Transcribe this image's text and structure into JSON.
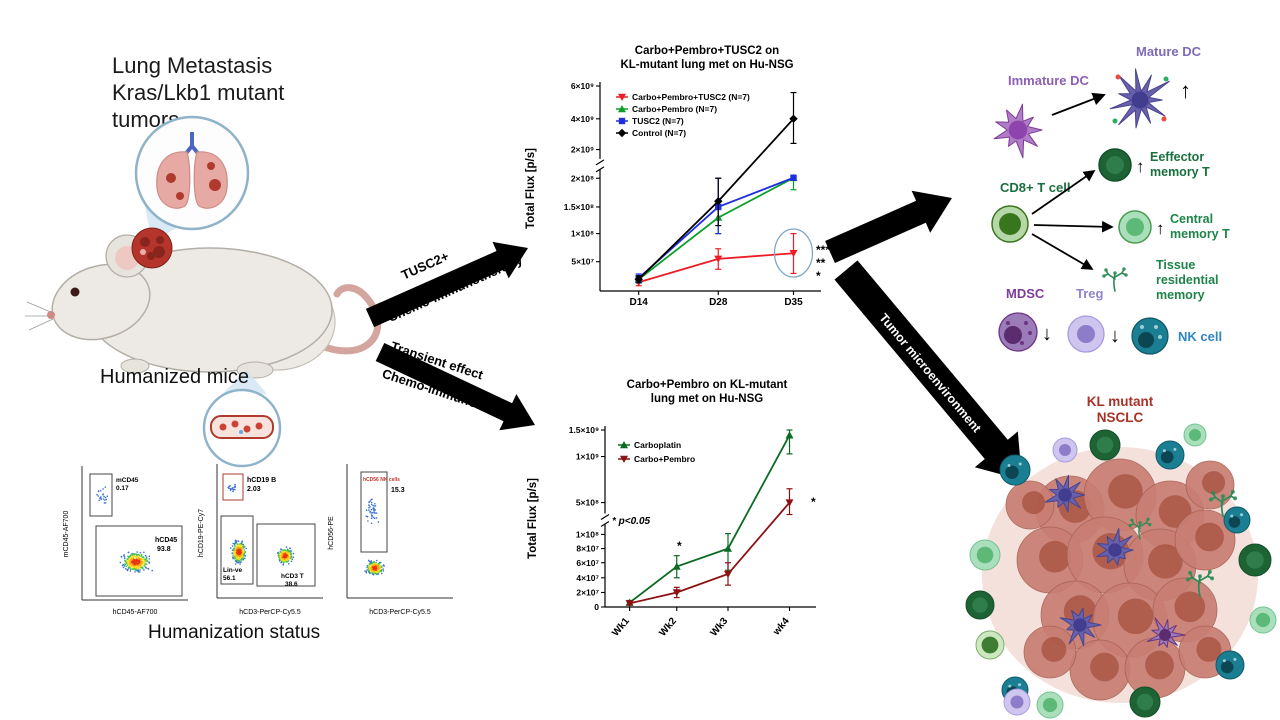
{
  "figure": {
    "background": "#ffffff"
  },
  "left_panel": {
    "title_lines": [
      "Lung Metastasis",
      "Kras/Lkb1 mutant",
      "tumors"
    ],
    "humanized_mice_label": "Humanized mice",
    "humanization_status_label": "Humanization status",
    "flow_plots": [
      {
        "ylabel": "mCD45-AF700",
        "xlabel": "hCD45-AF700",
        "gate1_label": "mCD45",
        "gate1_value": "0.17",
        "gate2_label": "hCD45",
        "gate2_value": "93.8"
      },
      {
        "ylabel": "hCD19-PE-Cy7",
        "xlabel": "hCD3-PerCP-Cy5.5",
        "gate1_label": "hCD19 B",
        "gate1_value": "2.03",
        "gate2_label": "Lin-ve",
        "gate2_value": "56.1",
        "gate3_label": "hCD3 T",
        "gate3_value": "38.6"
      },
      {
        "ylabel": "hCD56-PE",
        "xlabel": "hCD3-PerCP-Cy5.5",
        "gate1_label": "hCD56 NK cells",
        "gate1_value": "15.3"
      }
    ]
  },
  "arrows": {
    "tusc2_line1": "TUSC2+",
    "tusc2_line2": "Chemo-immunotherapy",
    "transient_line1": "Transient effect",
    "transient_line2": "Chemo-immunotherapy",
    "tumor_microenvironment": "Tumor microenvironment"
  },
  "chart_data": [
    {
      "type": "line",
      "title_lines": [
        "Carbo+Pembro+TUSC2 on",
        "KL-mutant lung met on Hu-NSG"
      ],
      "ylabel": "Total Flux [p/s]",
      "categories": [
        "D14",
        "D28",
        "D35"
      ],
      "ylim": [
        0,
        6000000000.0
      ],
      "grid": false,
      "legend_position": "top-left",
      "y_scale": "broken",
      "y_break_f": 0.62,
      "yticks": [
        {
          "label": "",
          "value": 0,
          "f": 0.0
        },
        {
          "label": "5×10⁷",
          "value": 50000000.0,
          "f": 0.143
        },
        {
          "label": "1×10⁸",
          "value": 100000000.0,
          "f": 0.28
        },
        {
          "label": "1.5×10⁸",
          "value": 150000000.0,
          "f": 0.41
        },
        {
          "label": "2×10⁸",
          "value": 200000000.0,
          "f": 0.55
        },
        {
          "label": "2×10⁹",
          "value": 2000000000.0,
          "f": 0.69
        },
        {
          "label": "4×10⁹",
          "value": 4000000000.0,
          "f": 0.84
        },
        {
          "label": "6×10⁹",
          "value": 6000000000.0,
          "f": 1.0
        }
      ],
      "series": [
        {
          "name": "Carbo+Pembro+TUSC2 (N=7)",
          "color": "#ed1c24",
          "marker": "triangle-down",
          "values": [
            15000000.0,
            55000000.0,
            65000000.0
          ],
          "err": [
            6000000.0,
            18000000.0,
            35000000.0
          ]
        },
        {
          "name": "Carbo+Pembro (N=7)",
          "color": "#0aa02a",
          "marker": "triangle-up",
          "values": [
            20000000.0,
            130000000.0,
            220000000.0
          ],
          "err": [
            6000000.0,
            30000000.0,
            40000000.0
          ]
        },
        {
          "name": "TUSC2 (N=7)",
          "color": "#1f2fe0",
          "marker": "square",
          "values": [
            22000000.0,
            150000000.0,
            230000000.0
          ],
          "err": [
            7000000.0,
            50000000.0,
            30000000.0
          ]
        },
        {
          "name": "Control (N=7)",
          "color": "#000000",
          "marker": "diamond",
          "values": [
            20000000.0,
            160000000.0,
            4000000000.0
          ],
          "err": [
            6000000.0,
            45000000.0,
            1600000000.0
          ]
        }
      ],
      "significance_stars": [
        "***",
        "**",
        "*"
      ]
    },
    {
      "type": "line",
      "title_lines": [
        "Carbo+Pembro on KL-mutant",
        "lung met on Hu-NSG"
      ],
      "ylabel": "Total Flux [p/s]",
      "categories": [
        "Wk1",
        "Wk2",
        "Wk3",
        "wk4"
      ],
      "ylim": [
        0,
        1500000000.0
      ],
      "grid": false,
      "legend_position": "top-left",
      "y_scale": "broken",
      "y_break_f": 0.5,
      "yticks": [
        {
          "label": "0",
          "value": 0,
          "f": 0.0
        },
        {
          "label": "2×10⁷",
          "value": 20000000.0,
          "f": 0.082
        },
        {
          "label": "4×10⁷",
          "value": 40000000.0,
          "f": 0.165
        },
        {
          "label": "6×10⁷",
          "value": 60000000.0,
          "f": 0.25
        },
        {
          "label": "8×10⁷",
          "value": 80000000.0,
          "f": 0.33
        },
        {
          "label": "1×10⁸",
          "value": 100000000.0,
          "f": 0.41
        },
        {
          "label": "5×10⁸",
          "value": 500000000.0,
          "f": 0.59
        },
        {
          "label": "1×10⁹",
          "value": 1000000000.0,
          "f": 0.85
        },
        {
          "label": "1.5×10⁹",
          "value": 1500000000.0,
          "f": 1.0
        }
      ],
      "series": [
        {
          "name": "Carboplatin",
          "color": "#0b6b23",
          "marker": "triangle-up",
          "values": [
            6000000.0,
            55000000.0,
            80000000.0,
            1400000000.0
          ],
          "err": [
            3000000.0,
            15000000.0,
            30000000.0,
            350000000.0
          ]
        },
        {
          "name": "Carbo+Pembro",
          "color": "#8b1212",
          "marker": "triangle-down",
          "values": [
            5000000.0,
            20000000.0,
            45000000.0,
            500000000.0
          ],
          "err": [
            2000000.0,
            7000000.0,
            15000000.0,
            150000000.0
          ]
        }
      ],
      "annotations": {
        "pvalue": "* p<0.05",
        "star_wk2": "*",
        "star_wk4": "*"
      }
    }
  ],
  "right_panel": {
    "immature_dc": "Immature DC",
    "mature_dc": "Mature DC",
    "cd8_t_cell": "CD8+ T cell",
    "effector_line1": "Eeffector",
    "effector_line2": "memory T",
    "central_line1": "Central",
    "central_line2": "memory T",
    "tissue_line1": "Tissue",
    "tissue_line2": "residential",
    "tissue_line3": "memory",
    "mdsc": "MDSC",
    "treg": "Treg",
    "nk_cell": "NK cell",
    "tumor_line1": "KL mutant",
    "tumor_line2": "NSCLC",
    "up_arrow": "↑",
    "down_arrow": "↓",
    "colors": {
      "dc_purple": "#8e5fb5",
      "t_green": "#196f3d",
      "nk_teal": "#1a7f93",
      "treg_lavender": "#8f86c9",
      "tumor_red": "#a93226"
    }
  }
}
